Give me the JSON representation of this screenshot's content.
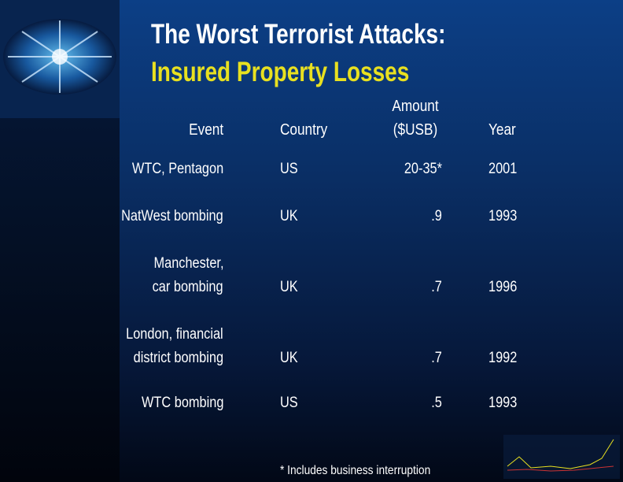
{
  "header": {
    "title": [
      "The Worst Terrorist Attacks:",
      "Insured Property Losses"
    ]
  },
  "table": {
    "columns": {
      "event": "Event",
      "country": "Country",
      "amount": [
        "Amount",
        "($USB)"
      ],
      "year": "Year"
    },
    "rows": [
      {
        "event": [
          "WTC, Pentagon"
        ],
        "country": "US",
        "amount": "20-35*",
        "year": "2001"
      },
      {
        "event": [
          "NatWest bombing"
        ],
        "country": "UK",
        "amount": ".9",
        "year": "1993"
      },
      {
        "event": [
          "Manchester,",
          "car bombing"
        ],
        "country": "UK",
        "amount": ".7",
        "year": "1996"
      },
      {
        "event": [
          "London, financial",
          "district bombing"
        ],
        "country": "UK",
        "amount": ".7",
        "year": "1992"
      },
      {
        "event": [
          "WTC bombing"
        ],
        "country": "US",
        "amount": ".5",
        "year": "1993"
      }
    ]
  },
  "footnote": "* Includes business interruption"
}
